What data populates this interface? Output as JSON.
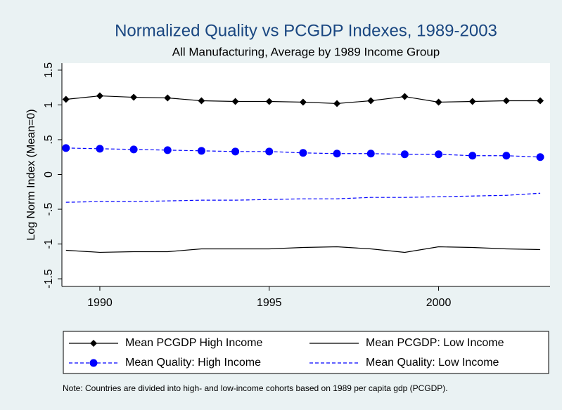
{
  "chart_data": {
    "type": "line",
    "title": "Normalized Quality vs PCGDP Indexes, 1989-2003",
    "subtitle": "All Manufacturing, Average by 1989 Income Group",
    "y_label": "Log Norm Index (Mean=0)",
    "note": "Note: Countries are divided into high- and low-income cohorts based on 1989 per capita gdp (PCGDP).",
    "x": [
      1989,
      1990,
      1991,
      1992,
      1993,
      1994,
      1995,
      1996,
      1997,
      1998,
      1999,
      2000,
      2001,
      2002,
      2003
    ],
    "xlim": [
      1988.88,
      2003.29
    ],
    "xticks": [
      1990,
      1995,
      2000
    ],
    "ylim": [
      -1.61,
      1.6
    ],
    "yticks": [
      1.5,
      1,
      {
        "value": 0.5,
        "label": ".5"
      },
      0,
      {
        "value": -0.5,
        "label": "-.5"
      },
      -1,
      -1.5
    ],
    "series": [
      {
        "name": "Mean PCGDP High Income",
        "color": "#000000",
        "marker": "diamond",
        "dash": false,
        "values": [
          1.08,
          1.13,
          1.11,
          1.1,
          1.06,
          1.05,
          1.05,
          1.04,
          1.02,
          1.06,
          1.12,
          1.04,
          1.05,
          1.06,
          1.06
        ]
      },
      {
        "name": "Mean PCGDP: Low Income",
        "color": "#000000",
        "marker": "none",
        "dash": false,
        "values": [
          -1.09,
          -1.12,
          -1.11,
          -1.11,
          -1.07,
          -1.07,
          -1.07,
          -1.05,
          -1.04,
          -1.07,
          -1.12,
          -1.04,
          -1.05,
          -1.07,
          -1.08
        ]
      },
      {
        "name": "Mean Quality: High Income",
        "color": "#0000ff",
        "marker": "circle",
        "dash": true,
        "values": [
          0.38,
          0.37,
          0.36,
          0.35,
          0.34,
          0.33,
          0.33,
          0.31,
          0.3,
          0.3,
          0.29,
          0.29,
          0.27,
          0.27,
          0.25
        ]
      },
      {
        "name": "Mean Quality: Low Income",
        "color": "#0000ff",
        "marker": "none",
        "dash": true,
        "values": [
          -0.4,
          -0.39,
          -0.39,
          -0.38,
          -0.37,
          -0.37,
          -0.36,
          -0.35,
          -0.35,
          -0.33,
          -0.33,
          -0.32,
          -0.31,
          -0.3,
          -0.27
        ]
      }
    ]
  }
}
